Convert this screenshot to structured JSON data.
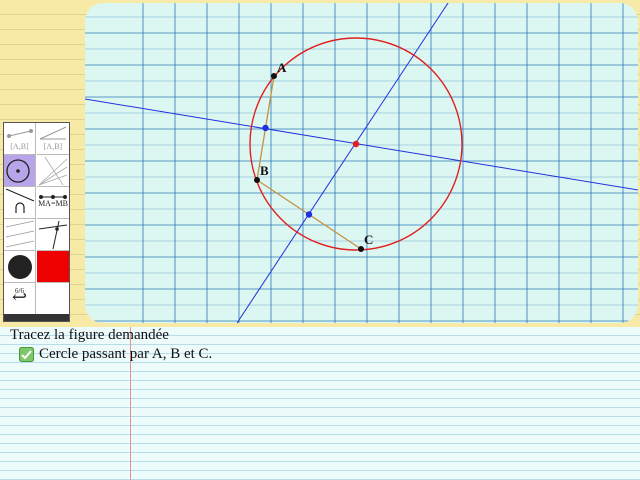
{
  "exercise": {
    "instruction": "Tracez la figure demandée",
    "task": "Cercle passant par A, B et C."
  },
  "points": [
    {
      "label": "A"
    },
    {
      "label": "B"
    },
    {
      "label": "C"
    }
  ],
  "toolbar": {
    "tools": [
      {
        "name": "segment-tool",
        "label": "[A,B]"
      },
      {
        "name": "segment-tool-alt",
        "label": "[A,B]"
      },
      {
        "name": "circle-tool"
      },
      {
        "name": "lines-tool"
      },
      {
        "name": "arc-tool"
      },
      {
        "name": "midpoint-tool",
        "label": "MA=MB"
      },
      {
        "name": "parallel-tool"
      },
      {
        "name": "perpendicular-tool"
      },
      {
        "name": "black-color"
      },
      {
        "name": "red-color"
      },
      {
        "name": "undo-tool"
      },
      {
        "name": "empty-tool"
      }
    ],
    "counter": "6/6"
  },
  "colors": {
    "circle": "#e02020",
    "line": "#2030e0",
    "segment": "#c89040",
    "grid": "#2a78b8",
    "canvas_bg": "#dcf7f2",
    "tool_selected": "#b8a4e8",
    "red_swatch": "#ee0000"
  }
}
